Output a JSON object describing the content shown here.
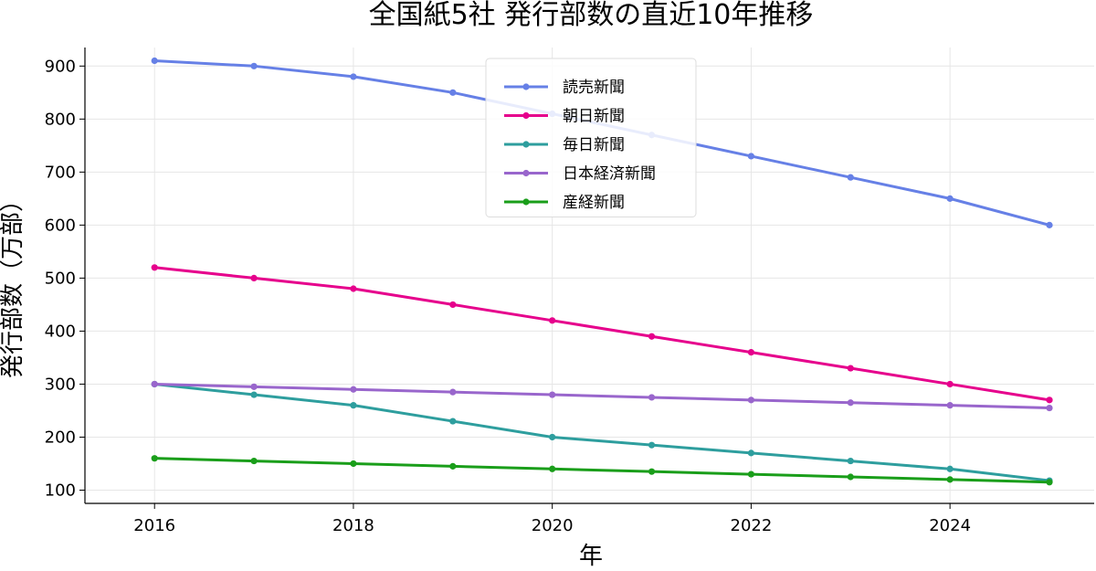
{
  "chart_data": {
    "type": "line",
    "title": "全国紙5社 発行部数の直近10年推移",
    "xlabel": "年",
    "ylabel": "発行部数（万部）",
    "x": [
      2016,
      2017,
      2018,
      2019,
      2020,
      2021,
      2022,
      2023,
      2024,
      2025
    ],
    "xlim": [
      2015.3,
      2025.45
    ],
    "ylim": [
      75,
      935
    ],
    "xticks": [
      "2016",
      "2018",
      "2020",
      "2022",
      "2024"
    ],
    "yticks": [
      "100",
      "200",
      "300",
      "400",
      "500",
      "600",
      "700",
      "800",
      "900"
    ],
    "grid": true,
    "legend_position": "upper-center",
    "series": [
      {
        "name": "読売新聞",
        "color": "#6680e6",
        "values": [
          910,
          900,
          880,
          850,
          810,
          770,
          730,
          690,
          650,
          600
        ]
      },
      {
        "name": "朝日新聞",
        "color": "#e6008c",
        "values": [
          520,
          500,
          480,
          450,
          420,
          390,
          360,
          330,
          300,
          270
        ]
      },
      {
        "name": "毎日新聞",
        "color": "#2e9e9e",
        "values": [
          300,
          280,
          260,
          230,
          200,
          185,
          170,
          155,
          140,
          118
        ]
      },
      {
        "name": "日本経済新聞",
        "color": "#9966cc",
        "values": [
          300,
          295,
          290,
          285,
          280,
          275,
          270,
          265,
          260,
          255
        ]
      },
      {
        "name": "産経新聞",
        "color": "#1a9e1a",
        "values": [
          160,
          155,
          150,
          145,
          140,
          135,
          130,
          125,
          120,
          115
        ]
      }
    ]
  }
}
